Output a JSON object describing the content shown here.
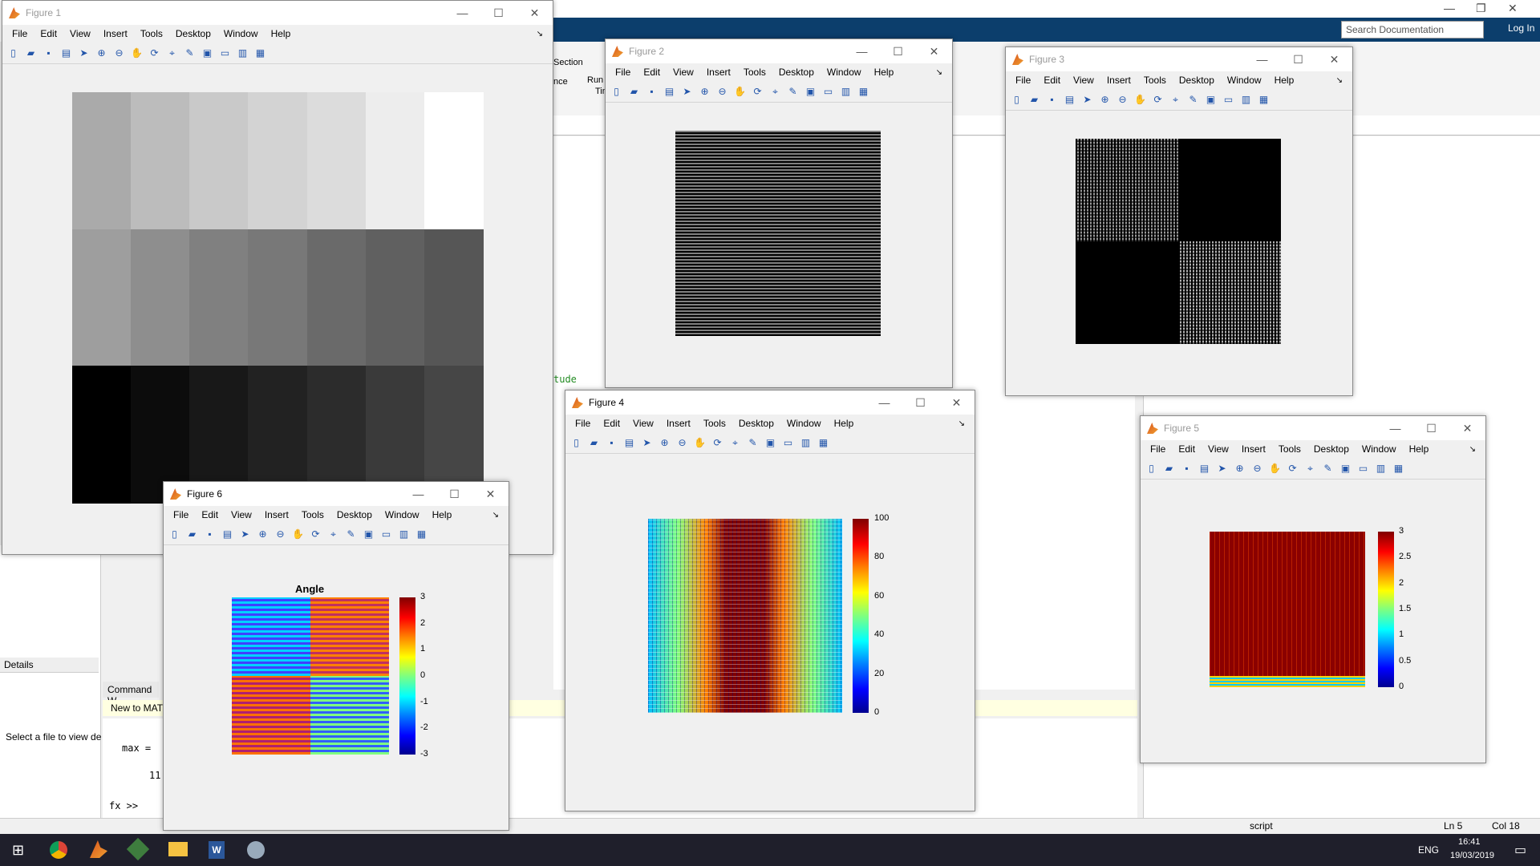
{
  "matlab": {
    "search_placeholder": "Search Documentation",
    "login": "Log In",
    "ribbon_section": "Section",
    "ribbon_run": "Run",
    "ribbon_nce": "nce",
    "ribbon_tim": "Tim",
    "editor_snippet": "tude",
    "details_label": "Details",
    "details_text": "Select a file to view de",
    "command_window_title": "Command W",
    "new_to_matlab": "New to MAT",
    "cmd_max": "max =",
    "cmd_value": "11",
    "cmd_prompt": "fx >>",
    "status_script": "script",
    "status_ln": "Ln  5",
    "status_col": "Col  18"
  },
  "taskbar": {
    "lang": "ENG",
    "time": "16:41",
    "date": "19/03/2019",
    "apps": [
      "windows-icon",
      "chrome-icon",
      "matlab-icon",
      "git-icon",
      "explorer-icon",
      "word-icon",
      "app-icon"
    ]
  },
  "menu": [
    "File",
    "Edit",
    "View",
    "Insert",
    "Tools",
    "Desktop",
    "Window",
    "Help"
  ],
  "controls": {
    "minimize": "—",
    "maximize": "☐",
    "close": "✕"
  },
  "figures": {
    "fig1": {
      "title": "Figure 1"
    },
    "fig2": {
      "title": "Figure 2"
    },
    "fig3": {
      "title": "Figure 3"
    },
    "fig4": {
      "title": "Figure 4",
      "ticks": [
        "100",
        "80",
        "60",
        "40",
        "20",
        "0"
      ]
    },
    "fig5": {
      "title": "Figure 5",
      "ticks": [
        "3",
        "2.5",
        "2",
        "1.5",
        "1",
        "0.5",
        "0"
      ]
    },
    "fig6": {
      "title": "Figure 6",
      "plot_title": "Angle",
      "ticks": [
        "3",
        "2",
        "1",
        "0",
        "-1",
        "-2",
        "-3"
      ]
    }
  },
  "fig1_grid": {
    "colors": [
      [
        "#aaaaaa",
        "#bcbcbc",
        "#c9c9c9",
        "#d3d3d3",
        "#dcdcdc",
        "#ededed",
        "#ffffff"
      ],
      [
        "#9e9e9e",
        "#8e8e8e",
        "#808080",
        "#787878",
        "#6a6a6a",
        "#606060",
        "#565656"
      ],
      [
        "#000000",
        "#0c0c0c",
        "#181818",
        "#222222",
        "#2c2c2c",
        "#3a3a3a",
        "#464646"
      ]
    ]
  }
}
